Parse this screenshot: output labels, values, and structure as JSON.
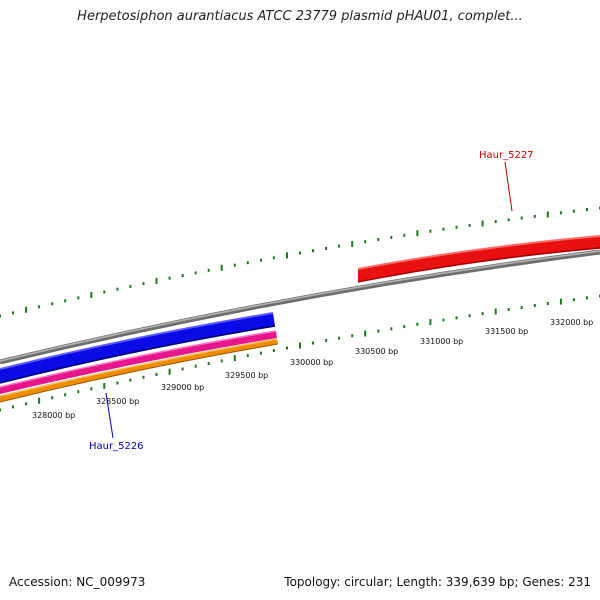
{
  "title": "Herpetosiphon aurantiacus ATCC 23779 plasmid pHAU01, complet...",
  "footer": {
    "accession": "Accession: NC_009973",
    "stats": "Topology: circular; Length: 339,639 bp; Genes: 231"
  },
  "colors": {
    "backbone": "#808080",
    "tick": "#1a7a1a",
    "gene_forward": "#e81010",
    "gene_reverse_1": "#0a0ae6",
    "gene_reverse_2": "#e8168c",
    "gene_reverse_3": "#f08c00",
    "label_forward": "#c00000",
    "label_reverse": "#0000b0"
  },
  "scale_labels": [
    "328000 bp",
    "328500 bp",
    "329000 bp",
    "329500 bp",
    "330000 bp",
    "330500 bp",
    "331000 bp",
    "331500 bp",
    "332000 bp"
  ],
  "genes": [
    {
      "label": "Haur_5227",
      "color": "#e81010"
    },
    {
      "label": "Haur_5226",
      "color": "#0a0ae6"
    }
  ]
}
